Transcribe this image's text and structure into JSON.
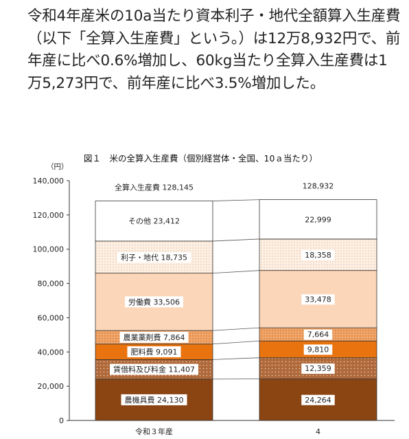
{
  "summary_text": "令和4年産米の10a当たり資本利子・地代全額算入生産費（以下「全算入生産費」という。）は12万8,932円で、前年産に比べ0.6%増加し、60kg当たり全算入生産費は1万5,273円で、前年産に比べ3.5%増加した。",
  "chart_data": {
    "type": "bar",
    "stacked": true,
    "title": "図１　米の全算入生産費（個別経営体・全国、10ａ当たり）",
    "ylabel": "（円）",
    "ylim": [
      0,
      140000
    ],
    "yticks": [
      "0",
      "20,000",
      "40,000",
      "60,000",
      "80,000",
      "100,000",
      "120,000",
      "140,000"
    ],
    "grid": false,
    "categories": [
      "令和３年産",
      "4"
    ],
    "totals": [
      128145,
      128932
    ],
    "total_labels": [
      "全算入生産費  128,145",
      "128,932"
    ],
    "series": [
      {
        "name": "農機具費",
        "values": [
          24130,
          24264
        ],
        "labels": [
          "農機具費  24,130",
          "24,264"
        ],
        "color": "#8B4513",
        "pattern": "solid"
      },
      {
        "name": "賃借料及び料金",
        "values": [
          11407,
          12359
        ],
        "labels": [
          "賃借料及び料金  11,407",
          "12,359"
        ],
        "color": "#b0693a",
        "pattern": "dots-light"
      },
      {
        "name": "肥料費",
        "values": [
          9091,
          9810
        ],
        "labels": [
          "肥料費  9,091",
          "9,810"
        ],
        "color": "#e8730f",
        "pattern": "solid"
      },
      {
        "name": "農業薬剤費",
        "values": [
          7864,
          7664
        ],
        "labels": [
          "農業薬剤費  7,864",
          "7,664"
        ],
        "color": "#f2a669",
        "pattern": "dots-dark"
      },
      {
        "name": "労働費",
        "values": [
          33506,
          33478
        ],
        "labels": [
          "労働費  33,506",
          "33,478"
        ],
        "color": "#fbd6b8",
        "pattern": "solid"
      },
      {
        "name": "利子・地代",
        "values": [
          18735,
          18358
        ],
        "labels": [
          "利子・地代  18,735",
          "18,358"
        ],
        "color": "#fcecdc",
        "pattern": "dots-fine"
      },
      {
        "name": "その他",
        "values": [
          23412,
          22999
        ],
        "labels": [
          "その他  23,412",
          "22,999"
        ],
        "color": "#ffffff",
        "pattern": "solid"
      }
    ]
  }
}
